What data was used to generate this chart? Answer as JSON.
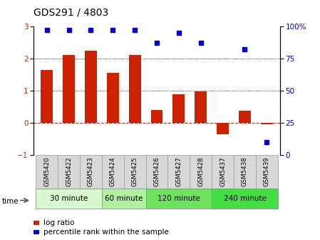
{
  "title": "GDS291 / 4803",
  "samples": [
    "GSM5420",
    "GSM5422",
    "GSM5423",
    "GSM5424",
    "GSM5425",
    "GSM5426",
    "GSM5427",
    "GSM5428",
    "GSM5437",
    "GSM5438",
    "GSM5439"
  ],
  "log_ratio": [
    1.65,
    2.1,
    2.25,
    1.55,
    2.1,
    0.4,
    0.88,
    0.98,
    -0.35,
    0.38,
    -0.05
  ],
  "percentile": [
    97,
    97,
    97,
    97,
    97,
    87,
    95,
    87,
    null,
    82,
    10
  ],
  "bar_color": "#cc2200",
  "dot_color": "#0000cc",
  "ylim_left": [
    -1,
    3
  ],
  "ylim_right": [
    0,
    100
  ],
  "yticks_left": [
    -1,
    0,
    1,
    2,
    3
  ],
  "yticks_right": [
    0,
    25,
    50,
    75,
    100
  ],
  "ytick_labels_right": [
    "0",
    "25",
    "50",
    "75",
    "100%"
  ],
  "time_groups": [
    {
      "label": "30 minute",
      "start": 0,
      "end": 3,
      "color": "#d8f8d0"
    },
    {
      "label": "60 minute",
      "start": 3,
      "end": 5,
      "color": "#b0f0a0"
    },
    {
      "label": "120 minute",
      "start": 5,
      "end": 8,
      "color": "#70e060"
    },
    {
      "label": "240 minute",
      "start": 8,
      "end": 11,
      "color": "#44dd44"
    }
  ],
  "legend_bar_label": "log ratio",
  "legend_dot_label": "percentile rank within the sample",
  "time_label": "time",
  "bg_color": "#ffffff",
  "tick_bg": "#d8d8d8"
}
